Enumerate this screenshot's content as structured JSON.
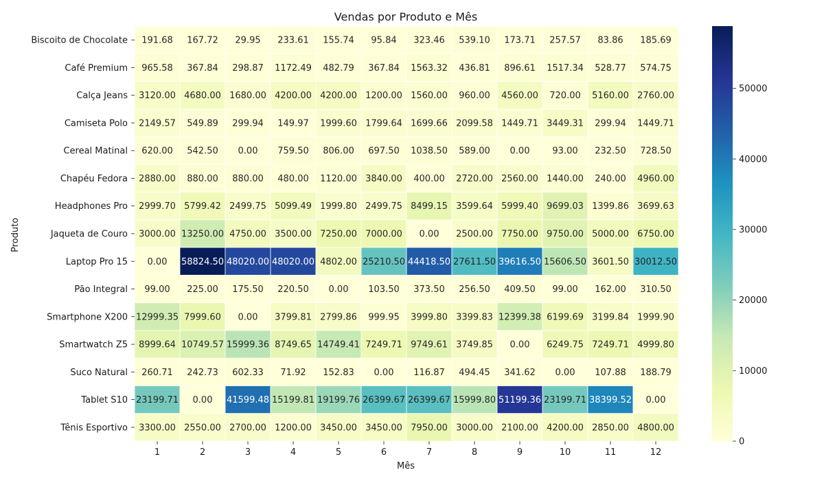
{
  "chart_data": {
    "type": "heatmap",
    "title": "Vendas por Produto e Mês",
    "xlabel": "Mês",
    "ylabel": "Produto",
    "x": [
      "1",
      "2",
      "3",
      "4",
      "5",
      "6",
      "7",
      "8",
      "9",
      "10",
      "11",
      "12"
    ],
    "y": [
      "Biscoito de Chocolate",
      "Café Premium",
      "Calça Jeans",
      "Camiseta Polo",
      "Cereal Matinal",
      "Chapéu Fedora",
      "Headphones Pro",
      "Jaqueta de Couro",
      "Laptop Pro 15",
      "Pão Integral",
      "Smartphone X200",
      "Smartwatch Z5",
      "Suco Natural",
      "Tablet S10",
      "Tênis Esportivo"
    ],
    "values": [
      [
        191.68,
        167.72,
        29.95,
        233.61,
        155.74,
        95.84,
        323.46,
        539.1,
        173.71,
        257.57,
        83.86,
        185.69
      ],
      [
        965.58,
        367.84,
        298.87,
        1172.49,
        482.79,
        367.84,
        1563.32,
        436.81,
        896.61,
        1517.34,
        528.77,
        574.75
      ],
      [
        3120.0,
        4680.0,
        1680.0,
        4200.0,
        4200.0,
        1200.0,
        1560.0,
        960.0,
        4560.0,
        720.0,
        5160.0,
        2760.0
      ],
      [
        2149.57,
        549.89,
        299.94,
        149.97,
        1999.6,
        1799.64,
        1699.66,
        2099.58,
        1449.71,
        3449.31,
        299.94,
        1449.71
      ],
      [
        620.0,
        542.5,
        0.0,
        759.5,
        806.0,
        697.5,
        1038.5,
        589.0,
        0.0,
        93.0,
        232.5,
        728.5
      ],
      [
        2880.0,
        880.0,
        880.0,
        480.0,
        1120.0,
        3840.0,
        400.0,
        2720.0,
        2560.0,
        1440.0,
        240.0,
        4960.0
      ],
      [
        2999.7,
        5799.42,
        2499.75,
        5099.49,
        1999.8,
        2499.75,
        8499.15,
        3599.64,
        5999.4,
        9699.03,
        1399.86,
        3699.63
      ],
      [
        3000.0,
        13250.0,
        4750.0,
        3500.0,
        7250.0,
        7000.0,
        0.0,
        2500.0,
        7750.0,
        9750.0,
        5000.0,
        6750.0
      ],
      [
        0.0,
        58824.5,
        48020.0,
        48020.0,
        4802.0,
        25210.5,
        44418.5,
        27611.5,
        39616.5,
        15606.5,
        3601.5,
        30012.5
      ],
      [
        99.0,
        225.0,
        175.5,
        220.5,
        0.0,
        103.5,
        373.5,
        256.5,
        409.5,
        99.0,
        162.0,
        310.5
      ],
      [
        12999.35,
        7999.6,
        0.0,
        3799.81,
        2799.86,
        999.95,
        3999.8,
        3399.83,
        12399.38,
        6199.69,
        3199.84,
        1999.9
      ],
      [
        8999.64,
        10749.57,
        15999.36,
        8749.65,
        14749.41,
        7249.71,
        9749.61,
        3749.85,
        0.0,
        6249.75,
        7249.71,
        4999.8
      ],
      [
        260.71,
        242.73,
        602.33,
        71.92,
        152.83,
        0.0,
        116.87,
        494.45,
        341.62,
        0.0,
        107.88,
        188.79
      ],
      [
        23199.71,
        0.0,
        41599.48,
        15199.81,
        19199.76,
        26399.67,
        26399.67,
        15999.8,
        51199.36,
        23199.71,
        38399.52,
        0.0
      ],
      [
        3300.0,
        2550.0,
        2700.0,
        1200.0,
        3450.0,
        3450.0,
        7950.0,
        3000.0,
        2100.0,
        4200.0,
        2850.0,
        4800.0
      ]
    ],
    "colorbar": {
      "min": 0,
      "max": 58824.5,
      "ticks": [
        "0",
        "10000",
        "20000",
        "30000",
        "40000",
        "50000"
      ],
      "colormap": "YlGnBu"
    },
    "value_format": "2 decimals"
  }
}
